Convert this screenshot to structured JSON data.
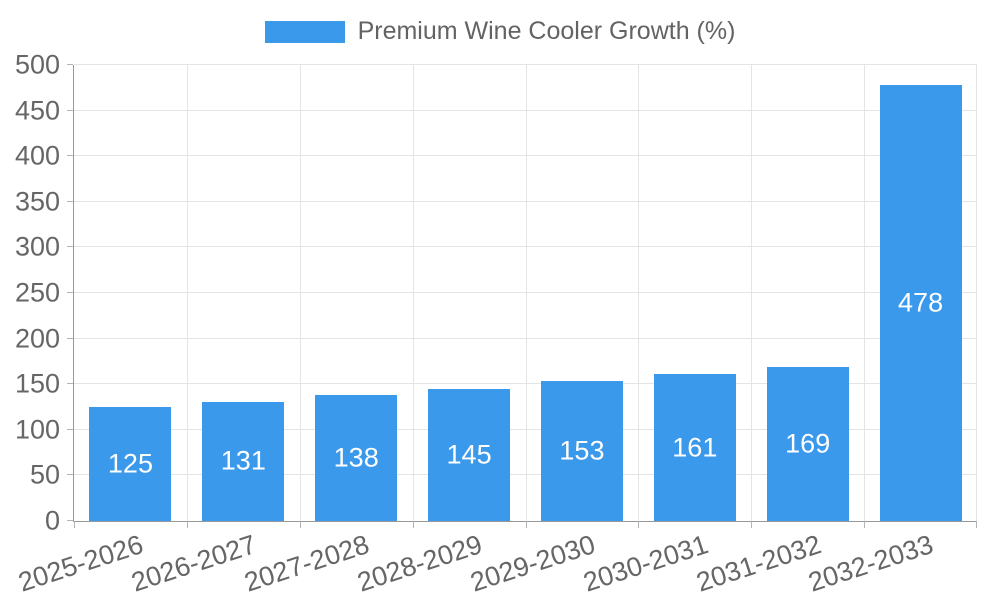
{
  "chart_data": {
    "type": "bar",
    "title": "Premium Wine Cooler Growth (%)",
    "categories": [
      "2025-2026",
      "2026-2027",
      "2027-2028",
      "2028-2029",
      "2029-2030",
      "2030-2031",
      "2031-2032",
      "2032-2033"
    ],
    "values": [
      125,
      131,
      138,
      145,
      153,
      161,
      169,
      478
    ],
    "xlabel": "",
    "ylabel": "",
    "ylim": [
      0,
      500
    ],
    "yticks": [
      0,
      50,
      100,
      150,
      200,
      250,
      300,
      350,
      400,
      450,
      500
    ],
    "grid": true,
    "legend_position": "top",
    "value_labels": "inside-center"
  },
  "legend": {
    "label": "Premium Wine Cooler Growth (%)"
  },
  "colors": {
    "bar": "#3B99EC",
    "grid_line": "#e4e4e4",
    "axis_line": "#999999",
    "tick_mark": "#b3b3b3",
    "tick_text": "#666666",
    "legend_text": "#636363",
    "value_label": "#ffffff",
    "background": "#ffffff"
  }
}
